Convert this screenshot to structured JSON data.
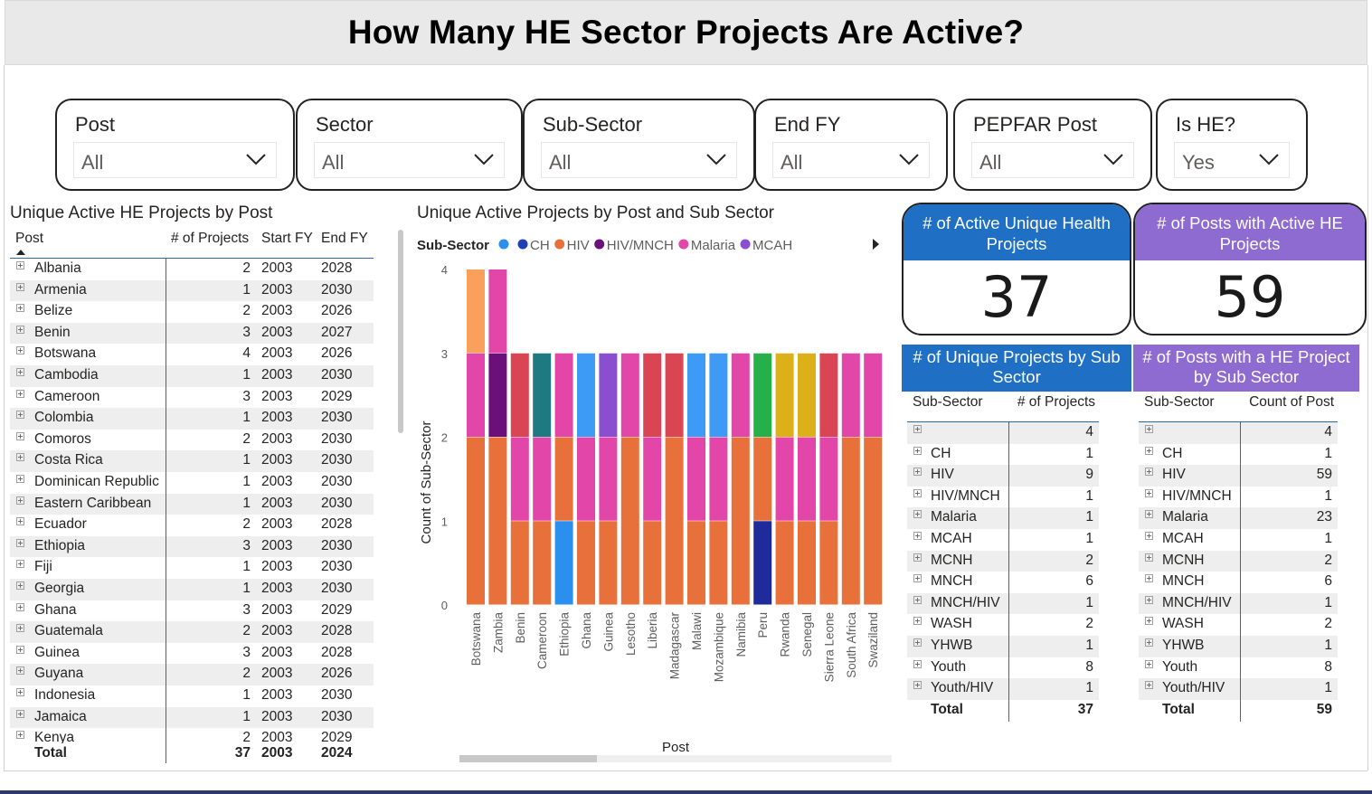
{
  "title": "How Many HE Sector Projects Are Active?",
  "slicers": [
    {
      "label": "Post",
      "value": "All"
    },
    {
      "label": "Sector",
      "value": "All"
    },
    {
      "label": "Sub-Sector",
      "value": "All"
    },
    {
      "label": "End FY",
      "value": "All"
    },
    {
      "label": "PEPFAR Post",
      "value": "All"
    },
    {
      "label": "Is HE?",
      "value": "Yes"
    }
  ],
  "post_table": {
    "title": "Unique Active HE Projects by Post",
    "columns": [
      "Post",
      "# of Projects",
      "Start FY",
      "End FY"
    ],
    "rows": [
      [
        "Albania",
        "2",
        "2003",
        "2028"
      ],
      [
        "Armenia",
        "1",
        "2003",
        "2030"
      ],
      [
        "Belize",
        "2",
        "2003",
        "2026"
      ],
      [
        "Benin",
        "3",
        "2003",
        "2027"
      ],
      [
        "Botswana",
        "4",
        "2003",
        "2026"
      ],
      [
        "Cambodia",
        "1",
        "2003",
        "2030"
      ],
      [
        "Cameroon",
        "3",
        "2003",
        "2029"
      ],
      [
        "Colombia",
        "1",
        "2003",
        "2030"
      ],
      [
        "Comoros",
        "2",
        "2003",
        "2030"
      ],
      [
        "Costa Rica",
        "1",
        "2003",
        "2030"
      ],
      [
        "Dominican Republic",
        "1",
        "2003",
        "2030"
      ],
      [
        "Eastern Caribbean",
        "1",
        "2003",
        "2030"
      ],
      [
        "Ecuador",
        "2",
        "2003",
        "2028"
      ],
      [
        "Ethiopia",
        "3",
        "2003",
        "2030"
      ],
      [
        "Fiji",
        "1",
        "2003",
        "2030"
      ],
      [
        "Georgia",
        "1",
        "2003",
        "2030"
      ],
      [
        "Ghana",
        "3",
        "2003",
        "2029"
      ],
      [
        "Guatemala",
        "2",
        "2003",
        "2028"
      ],
      [
        "Guinea",
        "3",
        "2003",
        "2028"
      ],
      [
        "Guyana",
        "2",
        "2003",
        "2026"
      ],
      [
        "Indonesia",
        "1",
        "2003",
        "2030"
      ],
      [
        "Jamaica",
        "1",
        "2003",
        "2030"
      ],
      [
        "Kenya",
        "2",
        "2003",
        "2029"
      ]
    ],
    "total": [
      "Total",
      "37",
      "2003",
      "2024"
    ]
  },
  "chart_title": "Unique Active Projects by Post and Sub Sector",
  "chart_data": {
    "type": "bar",
    "stacked": true,
    "xlabel": "Post",
    "ylabel": "Count of Sub-Sector",
    "ylim": [
      0,
      4
    ],
    "yticks": [
      "0",
      "1",
      "2",
      "3",
      "4"
    ],
    "legend_title": "Sub-Sector",
    "legend": [
      {
        "name": "",
        "color": "#2b8ff0"
      },
      {
        "name": "CH",
        "color": "#1f3fb5"
      },
      {
        "name": "HIV",
        "color": "#e8703a"
      },
      {
        "name": "HIV/MNCH",
        "color": "#6b0f7a"
      },
      {
        "name": "Malaria",
        "color": "#e246a8"
      },
      {
        "name": "MCAH",
        "color": "#8a4fd0"
      }
    ],
    "categories": [
      "Botswana",
      "Zambia",
      "Benin",
      "Cameroon",
      "Ethiopia",
      "Ghana",
      "Guinea",
      "Lesotho",
      "Liberia",
      "Madagascar",
      "Malawi",
      "Mozambique",
      "Namibia",
      "Peru",
      "Rwanda",
      "Senegal",
      "Sierra Leone",
      "South Africa",
      "Swaziland"
    ],
    "stacks": [
      [
        {
          "v": 2,
          "c": "#e8703a"
        },
        {
          "v": 1,
          "c": "#e246a8"
        },
        {
          "v": 1,
          "c": "#f9a05a"
        }
      ],
      [
        {
          "v": 2,
          "c": "#e8703a"
        },
        {
          "v": 1,
          "c": "#6b0f7a"
        },
        {
          "v": 1,
          "c": "#e246a8"
        }
      ],
      [
        {
          "v": 1,
          "c": "#e8703a"
        },
        {
          "v": 1,
          "c": "#e246a8"
        },
        {
          "v": 1,
          "c": "#d94552"
        }
      ],
      [
        {
          "v": 1,
          "c": "#e8703a"
        },
        {
          "v": 1,
          "c": "#e246a8"
        },
        {
          "v": 1,
          "c": "#1c7a80"
        }
      ],
      [
        {
          "v": 1,
          "c": "#2b8ff0"
        },
        {
          "v": 1,
          "c": "#e8703a"
        },
        {
          "v": 1,
          "c": "#e246a8"
        }
      ],
      [
        {
          "v": 1,
          "c": "#e8703a"
        },
        {
          "v": 1,
          "c": "#e246a8"
        },
        {
          "v": 1,
          "c": "#3d9af5"
        }
      ],
      [
        {
          "v": 1,
          "c": "#e8703a"
        },
        {
          "v": 1,
          "c": "#e246a8"
        },
        {
          "v": 1,
          "c": "#8a4fd0"
        }
      ],
      [
        {
          "v": 2,
          "c": "#e8703a"
        },
        {
          "v": 1,
          "c": "#e246a8"
        }
      ],
      [
        {
          "v": 1,
          "c": "#e8703a"
        },
        {
          "v": 1,
          "c": "#e246a8"
        },
        {
          "v": 1,
          "c": "#d94552"
        }
      ],
      [
        {
          "v": 2,
          "c": "#e8703a"
        },
        {
          "v": 1,
          "c": "#d94552"
        }
      ],
      [
        {
          "v": 1,
          "c": "#e8703a"
        },
        {
          "v": 1,
          "c": "#e246a8"
        },
        {
          "v": 1,
          "c": "#3d9af5"
        }
      ],
      [
        {
          "v": 1,
          "c": "#e8703a"
        },
        {
          "v": 1,
          "c": "#e246a8"
        },
        {
          "v": 1,
          "c": "#3d9af5"
        }
      ],
      [
        {
          "v": 2,
          "c": "#e8703a"
        },
        {
          "v": 1,
          "c": "#e246a8"
        }
      ],
      [
        {
          "v": 1,
          "c": "#1f2b9a"
        },
        {
          "v": 1,
          "c": "#e8703a"
        },
        {
          "v": 1,
          "c": "#26b04a"
        }
      ],
      [
        {
          "v": 1,
          "c": "#e8703a"
        },
        {
          "v": 1,
          "c": "#e246a8"
        },
        {
          "v": 1,
          "c": "#dbb018"
        }
      ],
      [
        {
          "v": 1,
          "c": "#e8703a"
        },
        {
          "v": 1,
          "c": "#e246a8"
        },
        {
          "v": 1,
          "c": "#dbb018"
        }
      ],
      [
        {
          "v": 1,
          "c": "#e8703a"
        },
        {
          "v": 1,
          "c": "#e246a8"
        },
        {
          "v": 1,
          "c": "#d94552"
        }
      ],
      [
        {
          "v": 2,
          "c": "#e8703a"
        },
        {
          "v": 1,
          "c": "#e246a8"
        }
      ],
      [
        {
          "v": 2,
          "c": "#e8703a"
        },
        {
          "v": 1,
          "c": "#e246a8"
        }
      ]
    ]
  },
  "kpis": [
    {
      "title": "# of Active Unique Health Projects",
      "value": "37",
      "color": "#1f6fc5"
    },
    {
      "title": "# of Posts with Active HE Projects",
      "value": "59",
      "color": "#8e6bd0"
    }
  ],
  "subsector_projects": {
    "title": "# of Unique Projects by Sub Sector",
    "color": "#1f6fc5",
    "columns": [
      "Sub-Sector",
      "# of Projects"
    ],
    "rows": [
      [
        "",
        "4"
      ],
      [
        "CH",
        "1"
      ],
      [
        "HIV",
        "9"
      ],
      [
        "HIV/MNCH",
        "1"
      ],
      [
        "Malaria",
        "1"
      ],
      [
        "MCAH",
        "1"
      ],
      [
        "MCNH",
        "2"
      ],
      [
        "MNCH",
        "6"
      ],
      [
        "MNCH/HIV",
        "1"
      ],
      [
        "WASH",
        "2"
      ],
      [
        "YHWB",
        "1"
      ],
      [
        "Youth",
        "8"
      ],
      [
        "Youth/HIV",
        "1"
      ]
    ],
    "total": [
      "Total",
      "37"
    ]
  },
  "subsector_posts": {
    "title": "# of Posts with a HE Project by Sub Sector",
    "color": "#8e6bd0",
    "columns": [
      "Sub-Sector",
      "Count of Post"
    ],
    "rows": [
      [
        "",
        "4"
      ],
      [
        "CH",
        "1"
      ],
      [
        "HIV",
        "59"
      ],
      [
        "HIV/MNCH",
        "1"
      ],
      [
        "Malaria",
        "23"
      ],
      [
        "MCAH",
        "1"
      ],
      [
        "MCNH",
        "2"
      ],
      [
        "MNCH",
        "6"
      ],
      [
        "MNCH/HIV",
        "1"
      ],
      [
        "WASH",
        "2"
      ],
      [
        "YHWB",
        "1"
      ],
      [
        "Youth",
        "8"
      ],
      [
        "Youth/HIV",
        "1"
      ]
    ],
    "total": [
      "Total",
      "59"
    ]
  }
}
